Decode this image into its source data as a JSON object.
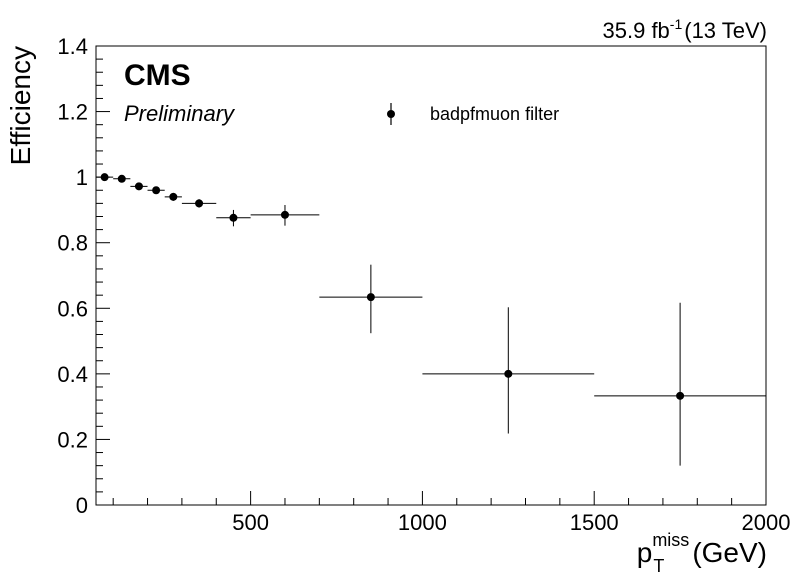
{
  "header": {
    "lumi": "35.9 fb",
    "lumi_exp": "-1",
    "energy": "(13 TeV)"
  },
  "cms_label": "CMS",
  "prelim_label": "Preliminary",
  "chart_data": {
    "type": "scatter",
    "title": "",
    "ylabel": "Efficiency",
    "xlabel": {
      "symbol": "p",
      "subscript": "T",
      "superscript": "miss",
      "unit": "(GeV)"
    },
    "xlim": [
      50,
      2000
    ],
    "ylim": [
      0,
      1.4
    ],
    "x_ticks": [
      500,
      1000,
      1500,
      2000
    ],
    "y_ticks": [
      0,
      0.2,
      0.4,
      0.6,
      0.8,
      1,
      1.2,
      1.4
    ],
    "y_tick_labels": [
      "0",
      "0.2",
      "0.4",
      "0.6",
      "0.8",
      "1",
      "1.2",
      "1.4"
    ],
    "legend": {
      "position": "top-center",
      "entries": [
        "badpfmuon filter"
      ]
    },
    "grid": false,
    "series": [
      {
        "name": "badpfmuon filter",
        "points": [
          {
            "x": 75,
            "xlow": 50,
            "xhigh": 100,
            "y": 1.0,
            "ylow": 0.993,
            "yhigh": 1.007
          },
          {
            "x": 125,
            "xlow": 100,
            "xhigh": 150,
            "y": 0.995,
            "ylow": 0.985,
            "yhigh": 1.005
          },
          {
            "x": 175,
            "xlow": 150,
            "xhigh": 200,
            "y": 0.972,
            "ylow": 0.962,
            "yhigh": 0.982
          },
          {
            "x": 225,
            "xlow": 200,
            "xhigh": 250,
            "y": 0.96,
            "ylow": 0.95,
            "yhigh": 0.97
          },
          {
            "x": 275,
            "xlow": 250,
            "xhigh": 300,
            "y": 0.94,
            "ylow": 0.928,
            "yhigh": 0.952
          },
          {
            "x": 350,
            "xlow": 300,
            "xhigh": 400,
            "y": 0.92,
            "ylow": 0.907,
            "yhigh": 0.933
          },
          {
            "x": 450,
            "xlow": 400,
            "xhigh": 500,
            "y": 0.876,
            "ylow": 0.85,
            "yhigh": 0.9
          },
          {
            "x": 600,
            "xlow": 500,
            "xhigh": 700,
            "y": 0.885,
            "ylow": 0.852,
            "yhigh": 0.915
          },
          {
            "x": 850,
            "xlow": 700,
            "xhigh": 1000,
            "y": 0.634,
            "ylow": 0.524,
            "yhigh": 0.733
          },
          {
            "x": 1250,
            "xlow": 1000,
            "xhigh": 1500,
            "y": 0.4,
            "ylow": 0.218,
            "yhigh": 0.603
          },
          {
            "x": 1750,
            "xlow": 1500,
            "xhigh": 2000,
            "y": 0.333,
            "ylow": 0.12,
            "yhigh": 0.617
          }
        ]
      }
    ]
  }
}
